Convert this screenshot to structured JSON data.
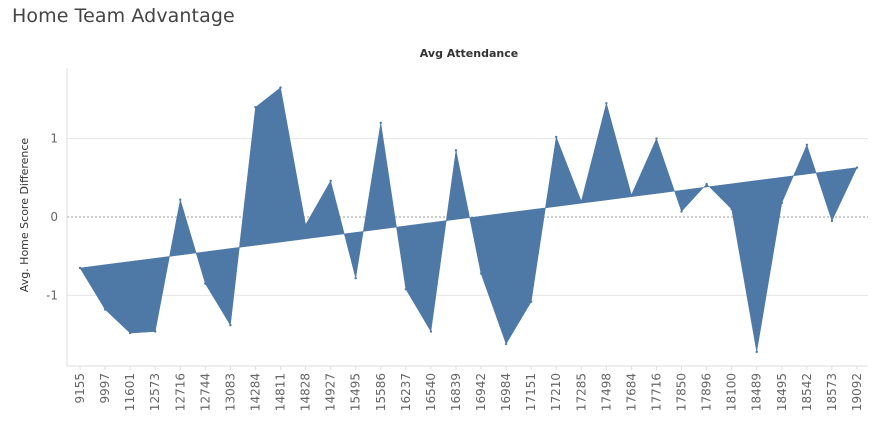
{
  "dashboard_title": "Home Team Advantage",
  "colors": {
    "area": "#4e79a7",
    "zero_line": "#999999",
    "grid": "#e6e6e6",
    "axis": "#dddddd"
  },
  "chart_data": {
    "type": "area",
    "title": "Avg Attendance",
    "xlabel": "",
    "ylabel": "Avg. Home Score Difference",
    "ylim": [
      -1.9,
      1.9
    ],
    "yticks": [
      -1,
      0,
      1
    ],
    "grid": "horizontal",
    "categories": [
      "9155",
      "9997",
      "11601",
      "12573",
      "12716",
      "12744",
      "13083",
      "14284",
      "14811",
      "14828",
      "14927",
      "15495",
      "15586",
      "16237",
      "16540",
      "16839",
      "16942",
      "16984",
      "17151",
      "17210",
      "17285",
      "17498",
      "17684",
      "17716",
      "17850",
      "17896",
      "18100",
      "18489",
      "18495",
      "18542",
      "18573",
      "19092"
    ],
    "series": [
      {
        "values": [
          -0.65,
          -1.18,
          -1.48,
          -1.46,
          0.22,
          -0.85,
          -1.38,
          1.4,
          1.65,
          -0.1,
          0.46,
          -0.78,
          1.2,
          -0.92,
          -1.46,
          0.85,
          -0.72,
          -1.62,
          -1.08,
          1.02,
          0.2,
          1.45,
          0.28,
          1.0,
          0.07,
          0.42,
          0.1,
          -1.72,
          0.18,
          0.92,
          -0.05,
          0.63
        ]
      }
    ],
    "trend_line": {
      "start": -0.65,
      "end": 0.63
    }
  }
}
